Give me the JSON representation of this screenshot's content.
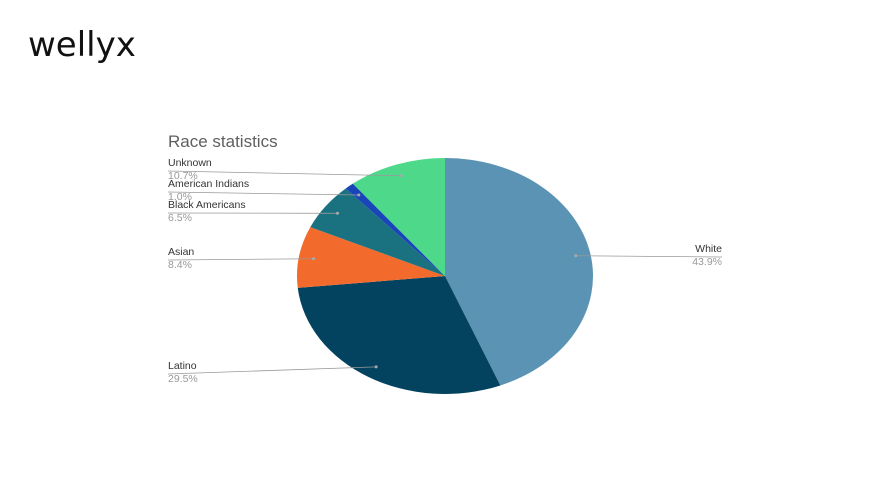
{
  "logo": "wellyx",
  "chart_data": {
    "type": "pie",
    "title": "Race statistics",
    "categories": [
      "White",
      "Latino",
      "Asian",
      "Black Americans",
      "American Indians",
      "Unknown"
    ],
    "values": [
      43.9,
      29.5,
      8.4,
      6.5,
      1.0,
      10.7
    ],
    "value_labels": [
      "43.9%",
      "29.5%",
      "8.4%",
      "6.5%",
      "1.0%",
      "10.7%"
    ],
    "colors": [
      "#5a93b3",
      "#03435f",
      "#f26b2c",
      "#1a7281",
      "#1846b8",
      "#4dd88a"
    ]
  }
}
